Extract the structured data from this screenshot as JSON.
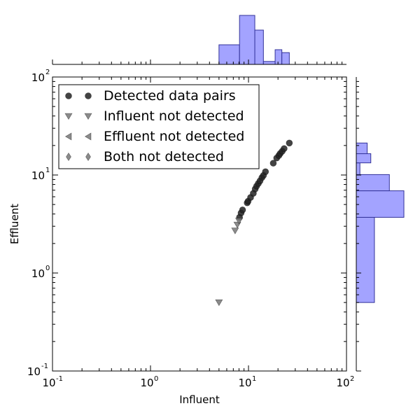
{
  "chart_data": {
    "type": "scatter",
    "xscale": "log",
    "yscale": "log",
    "xlim": [
      0.1,
      100
    ],
    "ylim": [
      0.1,
      100
    ],
    "xlabel": "Influent",
    "ylabel": "Effluent",
    "x_ticks": [
      {
        "base": "10",
        "exp": "-1",
        "value": 0.1
      },
      {
        "base": "10",
        "exp": "0",
        "value": 1
      },
      {
        "base": "10",
        "exp": "1",
        "value": 10
      },
      {
        "base": "10",
        "exp": "2",
        "value": 100
      }
    ],
    "y_ticks": [
      {
        "base": "10",
        "exp": "-1",
        "value": 0.1
      },
      {
        "base": "10",
        "exp": "0",
        "value": 1
      },
      {
        "base": "10",
        "exp": "1",
        "value": 10
      },
      {
        "base": "10",
        "exp": "2",
        "value": 100
      }
    ],
    "legend_position": "top-left",
    "series": [
      {
        "name": "Detected data pairs",
        "marker": "circle",
        "color": "#222222",
        "points": [
          [
            8.1,
            3.7
          ],
          [
            8.4,
            4.1
          ],
          [
            8.7,
            4.4
          ],
          [
            9.7,
            5.2
          ],
          [
            9.9,
            5.4
          ],
          [
            10.5,
            5.9
          ],
          [
            11.2,
            6.5
          ],
          [
            11.7,
            7.2
          ],
          [
            12.1,
            7.7
          ],
          [
            12.6,
            8.2
          ],
          [
            13.1,
            8.7
          ],
          [
            13.7,
            9.4
          ],
          [
            14.2,
            9.9
          ],
          [
            14.9,
            10.8
          ],
          [
            17.9,
            13.2
          ],
          [
            19.4,
            14.9
          ],
          [
            20.4,
            15.8
          ],
          [
            21.1,
            16.6
          ],
          [
            22.1,
            17.5
          ],
          [
            23.1,
            18.6
          ],
          [
            26.1,
            21.2
          ]
        ]
      },
      {
        "name": "Influent not detected",
        "marker": "triangle-down",
        "color": "#777777",
        "points": [
          [
            5.0,
            0.5
          ],
          [
            7.3,
            2.7
          ],
          [
            7.7,
            3.1
          ],
          [
            8.0,
            3.4
          ]
        ]
      },
      {
        "name": "Effluent not detected",
        "marker": "triangle-left",
        "color": "#777777",
        "points": []
      },
      {
        "name": "Both not detected",
        "marker": "diamond",
        "color": "#777777",
        "points": []
      }
    ],
    "x_histogram": {
      "color": "#9999ff",
      "edge_color": "#333399",
      "bins": [
        {
          "from": 5.0,
          "to": 8.1,
          "count": 2
        },
        {
          "from": 8.1,
          "to": 11.6,
          "count": 5
        },
        {
          "from": 11.6,
          "to": 14.2,
          "count": 3.5
        },
        {
          "from": 14.2,
          "to": 18.7,
          "count": 0.3
        },
        {
          "from": 18.7,
          "to": 21.9,
          "count": 1.5
        },
        {
          "from": 21.9,
          "to": 26.1,
          "count": 1.2
        }
      ]
    },
    "y_histogram": {
      "color": "#9999ff",
      "edge_color": "#333399",
      "bins": [
        {
          "from": 0.5,
          "to": 3.7,
          "count": 4
        },
        {
          "from": 3.7,
          "to": 6.9,
          "count": 10.5
        },
        {
          "from": 6.9,
          "to": 10.1,
          "count": 7.3
        },
        {
          "from": 10.1,
          "to": 13.3,
          "count": 0.8
        },
        {
          "from": 13.3,
          "to": 16.5,
          "count": 3.2
        },
        {
          "from": 16.5,
          "to": 21.2,
          "count": 2.4
        }
      ]
    }
  }
}
